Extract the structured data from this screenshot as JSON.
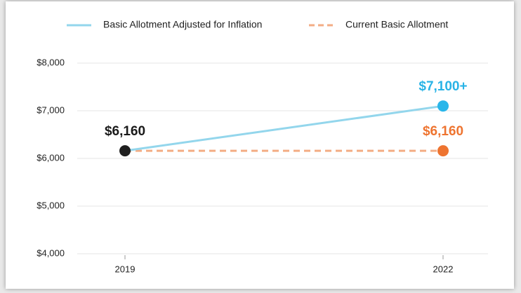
{
  "chart_data": {
    "type": "line",
    "categories": [
      "2019",
      "2022"
    ],
    "series": [
      {
        "name": "Basic Allotment Adjusted for Inflation",
        "color": "#93d6ec",
        "dash": false,
        "values": [
          6160,
          7100
        ],
        "value_labels": [
          "$6,160",
          "$7,100+"
        ],
        "label_colors": [
          "#1a1a1a",
          "#29b3e6"
        ],
        "marker_colors": [
          "#1f1f1f",
          "#29b6ea"
        ]
      },
      {
        "name": "Current Basic Allotment",
        "color": "#f3ad85",
        "dash": true,
        "values": [
          6160,
          6160
        ],
        "value_labels": [
          null,
          "$6,160"
        ],
        "label_colors": [
          null,
          "#ee7430"
        ],
        "marker_colors": [
          null,
          "#ee7430"
        ]
      }
    ],
    "ylim": [
      4000,
      8000
    ],
    "yticks": [
      {
        "value": 4000,
        "label": "$4,000"
      },
      {
        "value": 5000,
        "label": "$5,000"
      },
      {
        "value": 6000,
        "label": "$6,000"
      },
      {
        "value": 7000,
        "label": "$7,000"
      },
      {
        "value": 8000,
        "label": "$8,000"
      }
    ],
    "grid": true
  }
}
